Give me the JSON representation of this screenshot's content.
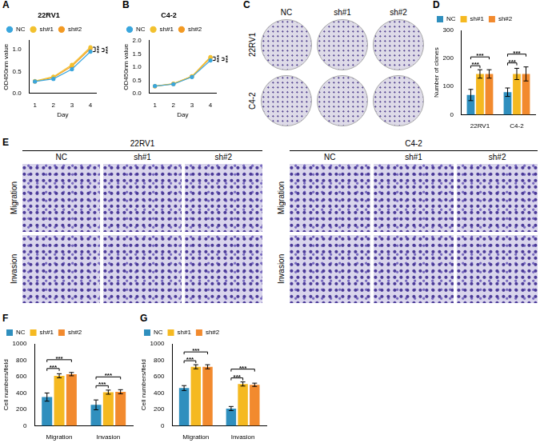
{
  "chart_data": [
    {
      "panel": "A",
      "type": "line",
      "title": "22RV1",
      "x_label": "Day",
      "y_label": "OD450nm value",
      "x": [
        1,
        2,
        3,
        4
      ],
      "xlim": [
        0.7,
        4.3
      ],
      "xticks": [
        1,
        2,
        3,
        4
      ],
      "ylim": [
        0,
        1.2
      ],
      "yticks": [
        {
          "value": 0,
          "label": "0.0"
        },
        {
          "value": 0.5,
          "label": "0.5"
        },
        {
          "value": 1,
          "label": "1.0"
        }
      ],
      "grid": false,
      "legend": "top",
      "marker": "circle",
      "line_style": "solid",
      "series": [
        {
          "name": "NC",
          "color": "#3aa6dd",
          "values": [
            0.27,
            0.33,
            0.55,
            0.95
          ]
        },
        {
          "name": "sh#1",
          "color": "#f2c12e",
          "values": [
            0.28,
            0.38,
            0.65,
            1.05
          ]
        },
        {
          "name": "sh#2",
          "color": "#f39a23",
          "values": [
            0.27,
            0.36,
            0.62,
            1.02
          ]
        }
      ],
      "significance": [
        {
          "pair": [
            "NC",
            "sh#1"
          ],
          "label": "***"
        },
        {
          "pair": [
            "NC",
            "sh#2"
          ],
          "label": "***"
        }
      ]
    },
    {
      "panel": "B",
      "type": "line",
      "title": "C4-2",
      "x_label": "Day",
      "y_label": "OD450nm value",
      "x": [
        1,
        2,
        3,
        4
      ],
      "xlim": [
        0.7,
        4.3
      ],
      "xticks": [
        1,
        2,
        3,
        4
      ],
      "ylim": [
        0,
        2
      ],
      "yticks": [
        {
          "value": 0,
          "label": "0.0"
        },
        {
          "value": 0.5,
          "label": "0.5"
        },
        {
          "value": 1,
          "label": "1.0"
        },
        {
          "value": 1.5,
          "label": "1.5"
        },
        {
          "value": 2,
          "label": "2.0"
        }
      ],
      "grid": false,
      "legend": "top",
      "marker": "circle",
      "line_style": "solid",
      "series": [
        {
          "name": "NC",
          "color": "#3aa6dd",
          "values": [
            0.28,
            0.35,
            0.62,
            1.25
          ]
        },
        {
          "name": "sh#1",
          "color": "#f2c12e",
          "values": [
            0.28,
            0.37,
            0.65,
            1.38
          ]
        },
        {
          "name": "sh#2",
          "color": "#f39a23",
          "values": [
            0.27,
            0.36,
            0.64,
            1.35
          ]
        }
      ],
      "significance": [
        {
          "pair": [
            "NC",
            "sh#1"
          ],
          "label": "***"
        },
        {
          "pair": [
            "NC",
            "sh#2"
          ],
          "label": "***"
        }
      ]
    },
    {
      "panel": "D",
      "type": "bar",
      "y_label": "Number of clones",
      "categories": [
        "22RV1",
        "C4-2"
      ],
      "ylim": [
        0,
        300
      ],
      "yticks": [
        0,
        100,
        200,
        300
      ],
      "grid": false,
      "legend": "top",
      "series": [
        {
          "name": "NC",
          "color": "#2f8fbe",
          "values": [
            70,
            80
          ],
          "errors": [
            20,
            15
          ]
        },
        {
          "name": "sh#1",
          "color": "#f5b921",
          "values": [
            145,
            145
          ],
          "errors": [
            15,
            20
          ]
        },
        {
          "name": "sh#2",
          "color": "#f28a2e",
          "values": [
            145,
            145
          ],
          "errors": [
            15,
            25
          ]
        }
      ],
      "significance": [
        {
          "category": "22RV1",
          "pair": [
            "NC",
            "sh#1"
          ],
          "label": "***"
        },
        {
          "category": "22RV1",
          "pair": [
            "NC",
            "sh#2"
          ],
          "label": "***"
        },
        {
          "category": "C4-2",
          "pair": [
            "NC",
            "sh#1"
          ],
          "label": "***"
        },
        {
          "category": "C4-2",
          "pair": [
            "NC",
            "sh#2"
          ],
          "label": "***"
        }
      ]
    },
    {
      "panel": "F",
      "type": "bar",
      "y_label": "Cell numbers/field",
      "categories": [
        "Migration",
        "Invasion"
      ],
      "ylim": [
        0,
        1000
      ],
      "yticks": [
        0,
        200,
        400,
        600,
        800,
        1000
      ],
      "grid": false,
      "legend": "top",
      "series": [
        {
          "name": "NC",
          "color": "#2f8fbe",
          "values": [
            350,
            255
          ],
          "errors": [
            50,
            60
          ]
        },
        {
          "name": "sh#1",
          "color": "#f5b921",
          "values": [
            610,
            410
          ],
          "errors": [
            25,
            25
          ]
        },
        {
          "name": "sh#2",
          "color": "#f28a2e",
          "values": [
            630,
            415
          ],
          "errors": [
            20,
            25
          ]
        }
      ],
      "significance": [
        {
          "category": "Migration",
          "pair": [
            "NC",
            "sh#1"
          ],
          "label": "***"
        },
        {
          "category": "Migration",
          "pair": [
            "NC",
            "sh#2"
          ],
          "label": "***"
        },
        {
          "category": "Invasion",
          "pair": [
            "NC",
            "sh#1"
          ],
          "label": "***"
        },
        {
          "category": "Invasion",
          "pair": [
            "NC",
            "sh#2"
          ],
          "label": "***"
        }
      ]
    },
    {
      "panel": "G",
      "type": "bar",
      "y_label": "Cell numbers/field",
      "categories": [
        "Migration",
        "Invasion"
      ],
      "ylim": [
        0,
        1000
      ],
      "yticks": [
        0,
        200,
        400,
        600,
        800,
        1000
      ],
      "grid": false,
      "legend": "top",
      "series": [
        {
          "name": "NC",
          "color": "#2f8fbe",
          "values": [
            460,
            210
          ],
          "errors": [
            30,
            25
          ]
        },
        {
          "name": "sh#1",
          "color": "#f5b921",
          "values": [
            720,
            510
          ],
          "errors": [
            25,
            25
          ]
        },
        {
          "name": "sh#2",
          "color": "#f28a2e",
          "values": [
            720,
            500
          ],
          "errors": [
            25,
            20
          ]
        }
      ],
      "significance": [
        {
          "category": "Migration",
          "pair": [
            "NC",
            "sh#1"
          ],
          "label": "***"
        },
        {
          "category": "Migration",
          "pair": [
            "NC",
            "sh#2"
          ],
          "label": "***"
        },
        {
          "category": "Invasion",
          "pair": [
            "NC",
            "sh#1"
          ],
          "label": "***"
        },
        {
          "category": "Invasion",
          "pair": [
            "NC",
            "sh#2"
          ],
          "label": "***"
        }
      ]
    }
  ],
  "images": [
    {
      "panel": "C",
      "columns": [
        "NC",
        "sh#1",
        "sh#2"
      ],
      "rows": [
        "22RV1",
        "C4-2"
      ]
    },
    {
      "panel": "E",
      "blocks": [
        {
          "title": "22RV1",
          "columns": [
            "NC",
            "sh#1",
            "sh#2"
          ],
          "rows": [
            "Migration",
            "Invasion"
          ]
        },
        {
          "title": "C4-2",
          "columns": [
            "NC",
            "sh#1",
            "sh#2"
          ],
          "rows": [
            "Migration",
            "Invasion"
          ]
        }
      ]
    }
  ]
}
